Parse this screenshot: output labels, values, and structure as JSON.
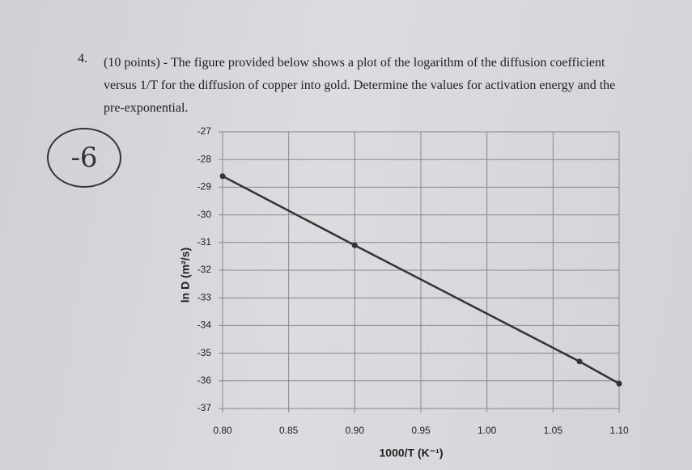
{
  "question": {
    "number": "4.",
    "text": "(10 points) - The figure provided below shows a plot of the logarithm of the diffusion coefficient versus 1/T for the diffusion of copper into gold. Determine the values for activation energy and the pre-exponential."
  },
  "score_note": "-6",
  "chart_data": {
    "type": "line",
    "x_label": "1000/T (K⁻¹)",
    "y_label": "ln D (m²/s)",
    "series": [
      {
        "name": "ln D",
        "color": "#333333",
        "x": [
          0.8,
          0.9,
          1.07,
          1.1
        ],
        "values": [
          -28.6,
          -31.1,
          -35.3,
          -36.1
        ]
      }
    ],
    "xlim": [
      0.8,
      1.1
    ],
    "xticks": [
      {
        "value": 0.8,
        "label": "0.80"
      },
      0.85,
      {
        "value": 0.9,
        "label": "0.90"
      },
      0.95,
      {
        "value": 1.0,
        "label": "1.00"
      },
      1.05,
      {
        "value": 1.1,
        "label": "1.10"
      }
    ],
    "ylim": [
      -37,
      -27
    ],
    "yticks": [
      -27,
      -28,
      -29,
      -30,
      -31,
      -32,
      -33,
      -34,
      -35,
      -36,
      -37
    ],
    "grid": true
  }
}
